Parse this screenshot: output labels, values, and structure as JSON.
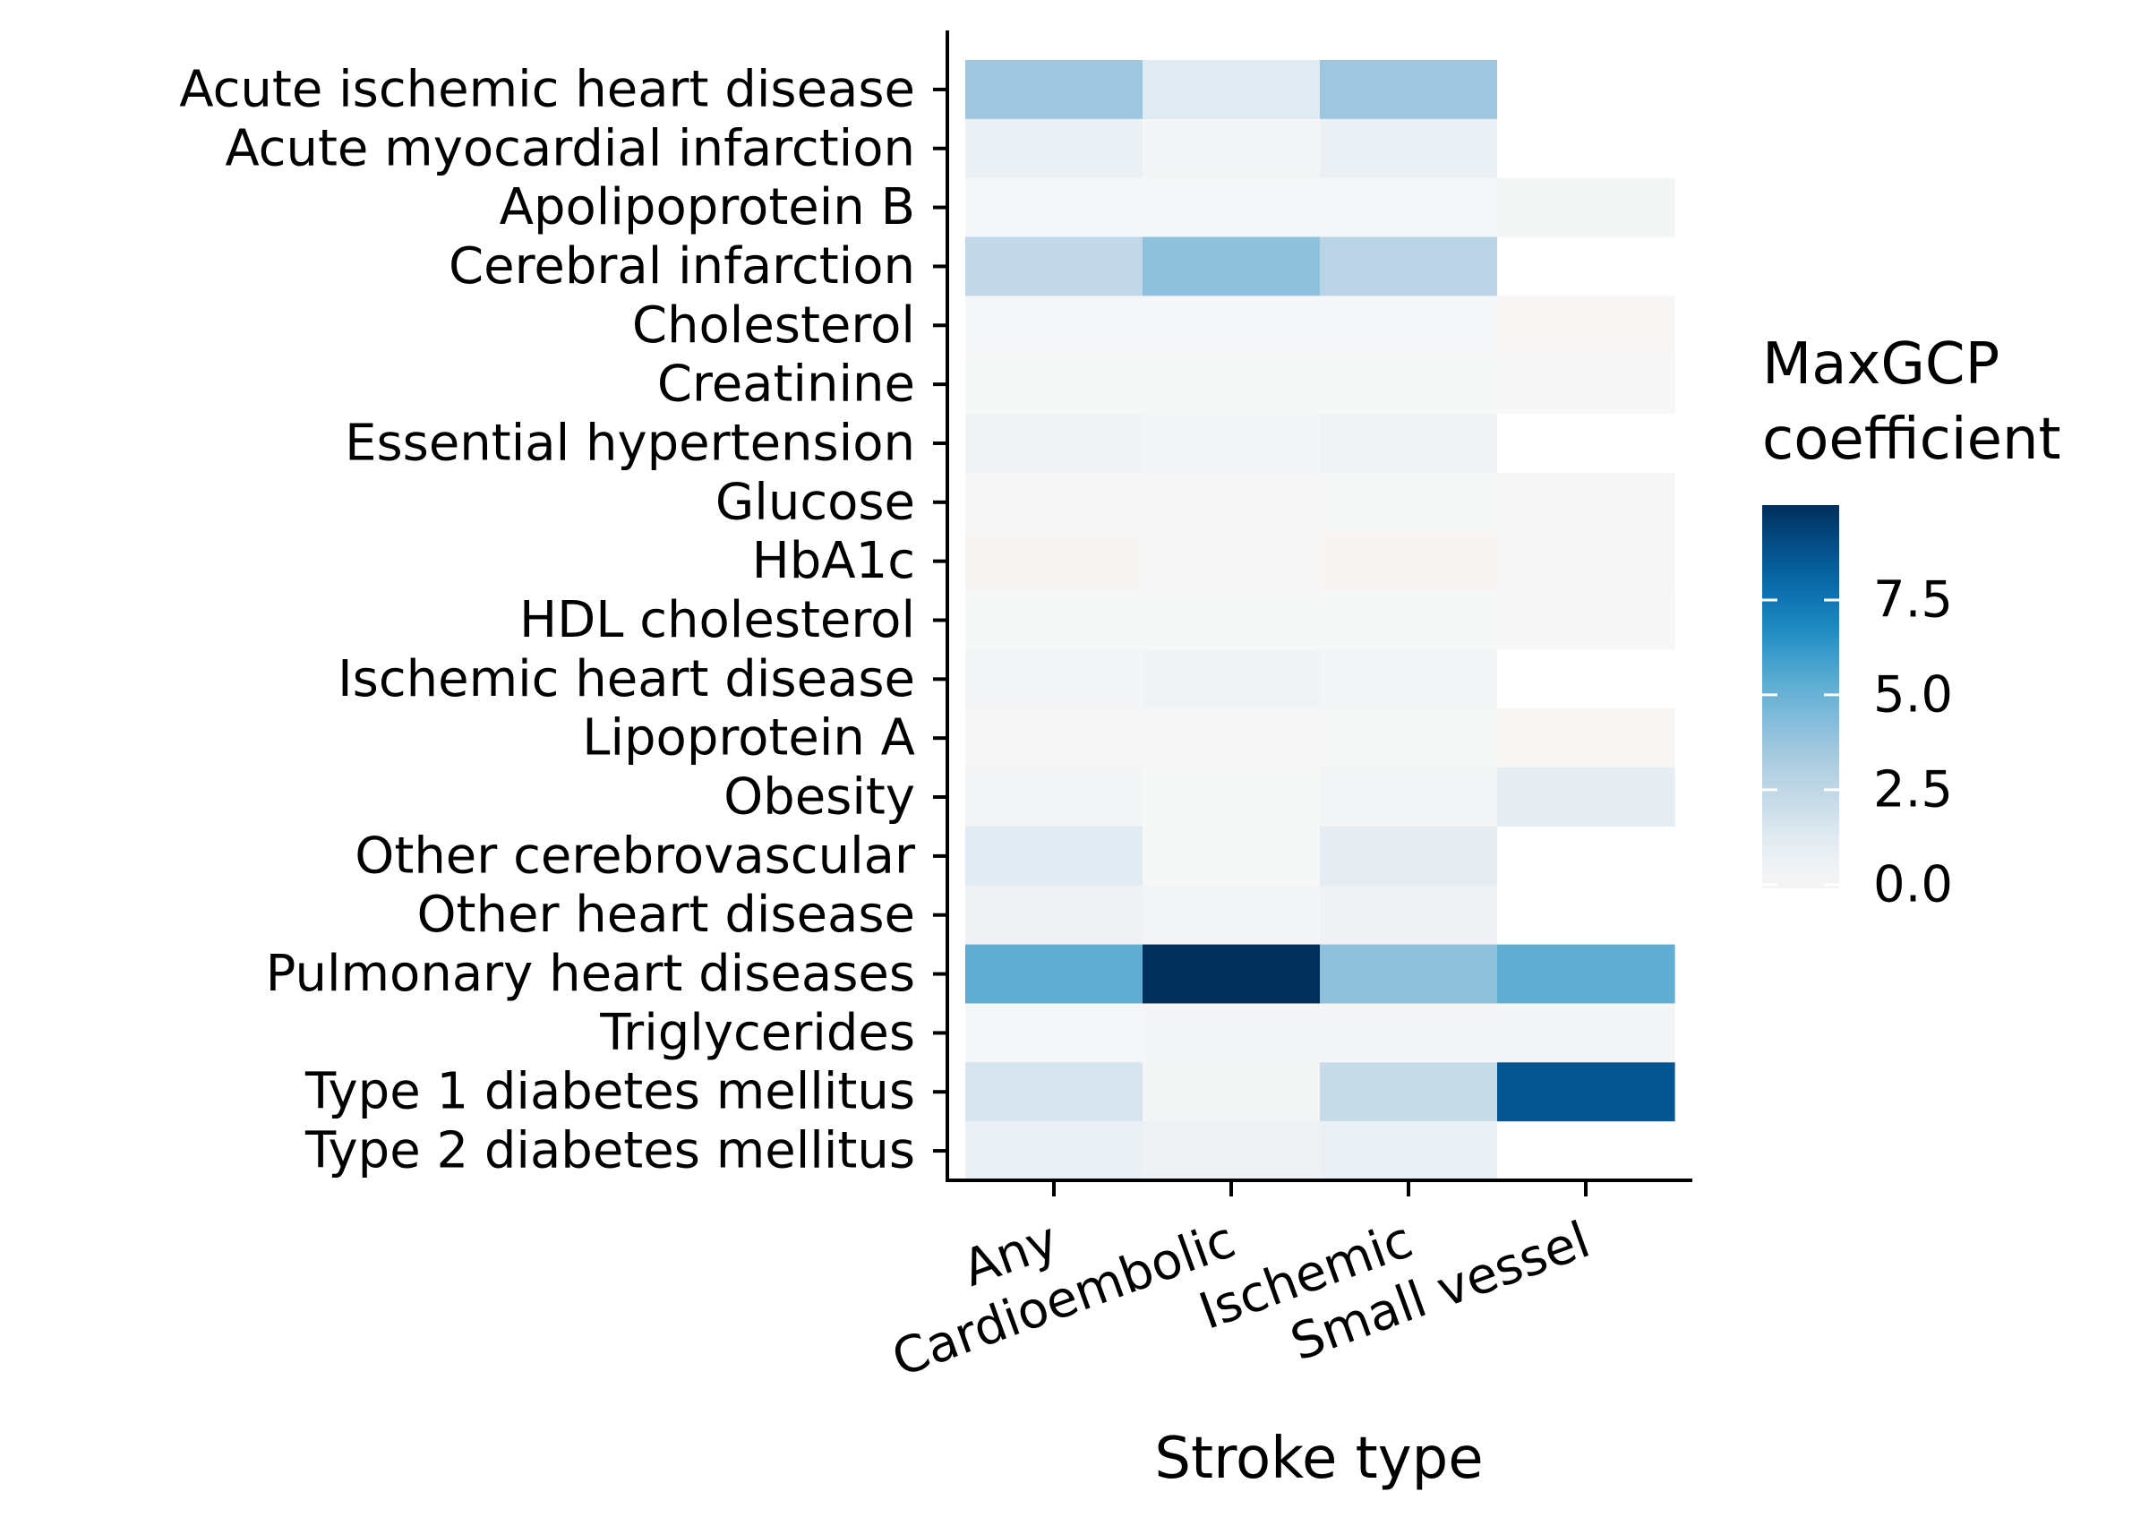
{
  "chart_data": {
    "type": "heatmap",
    "title": "",
    "xlabel": "Stroke type",
    "ylabel": "",
    "x_categories": [
      "Any",
      "Cardioembolic",
      "Ischemic",
      "Small vessel"
    ],
    "y_categories": [
      "Acute ischemic heart disease",
      "Acute myocardial infarction",
      "Apolipoprotein B",
      "Cerebral infarction",
      "Cholesterol",
      "Creatinine",
      "Essential hypertension",
      "Glucose",
      "HbA1c",
      "HDL cholesterol",
      "Ischemic heart disease",
      "Lipoprotein A",
      "Obesity",
      "Other cerebrovascular",
      "Other heart disease",
      "Pulmonary heart diseases",
      "Triglycerides",
      "Type 1 diabetes mellitus",
      "Type 2 diabetes mellitus"
    ],
    "values": [
      [
        3.6,
        1.2,
        3.6,
        null
      ],
      [
        0.7,
        0.2,
        0.7,
        null
      ],
      [
        0.1,
        0.1,
        0.1,
        0.15
      ],
      [
        2.4,
        4.0,
        2.7,
        null
      ],
      [
        0.1,
        0.1,
        0.1,
        -0.05
      ],
      [
        0.05,
        0.05,
        0.05,
        0.0
      ],
      [
        0.45,
        0.25,
        0.45,
        null
      ],
      [
        0.0,
        0.0,
        0.05,
        -0.02
      ],
      [
        -0.08,
        -0.03,
        -0.1,
        -0.03
      ],
      [
        0.05,
        0.05,
        0.05,
        0.0
      ],
      [
        0.25,
        0.45,
        0.3,
        null
      ],
      [
        0.0,
        0.0,
        0.05,
        -0.05
      ],
      [
        0.3,
        0.05,
        0.3,
        1.0
      ],
      [
        1.2,
        0.05,
        1.0,
        null
      ],
      [
        0.5,
        0.3,
        0.5,
        null
      ],
      [
        5.2,
        10.0,
        4.0,
        5.2
      ],
      [
        0.1,
        0.2,
        0.2,
        0.2
      ],
      [
        1.6,
        0.15,
        2.2,
        8.7
      ],
      [
        0.7,
        0.5,
        0.7,
        null
      ]
    ],
    "legend": {
      "title_lines": [
        "MaxGCP",
        "coefficient"
      ],
      "ticks": [
        "0.0",
        "2.5",
        "5.0",
        "7.5"
      ],
      "tick_values": [
        0,
        2.5,
        5.0,
        7.5
      ],
      "range": [
        -0.1,
        10.0
      ],
      "placement": "right"
    },
    "color_scale": {
      "min_color": "#f7f4f2",
      "stops": [
        "#f7f7f7",
        "#e3ecf2",
        "#c7dbe9",
        "#a8cbe0",
        "#7fbadb",
        "#52a8d1",
        "#1f8dc3",
        "#0a6ead",
        "#04508a",
        "#002f5b"
      ],
      "na_color": "#ffffff"
    }
  }
}
